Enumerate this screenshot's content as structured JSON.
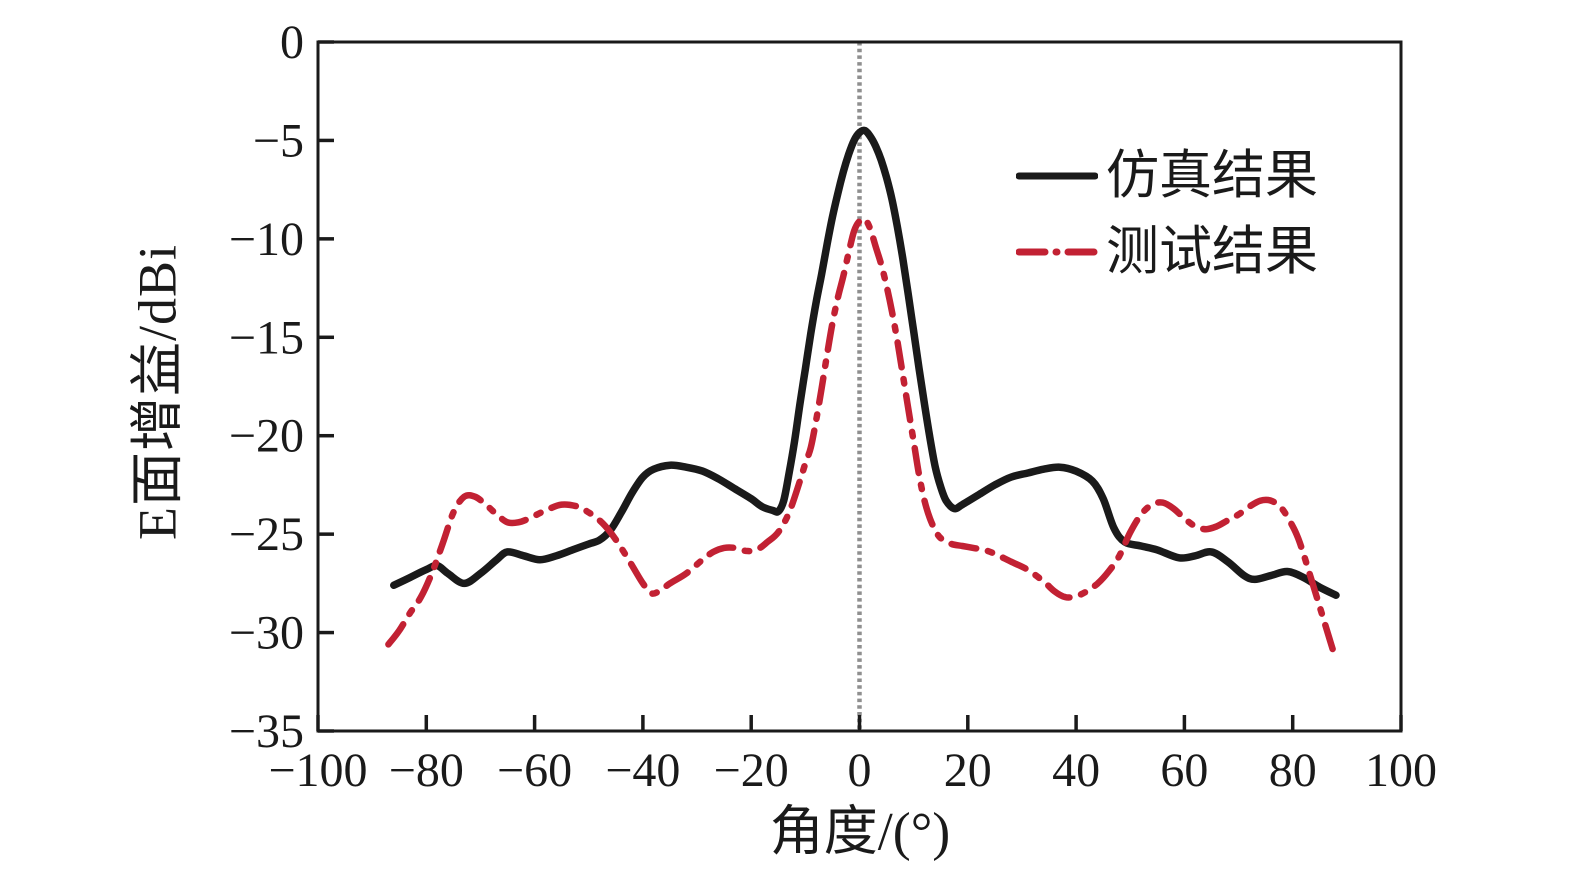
{
  "figure": {
    "background": "#ffffff",
    "axis_color": "#1a1a1a",
    "tick_label_color": "#1a1a1a"
  },
  "chart_data": {
    "type": "line",
    "title": "",
    "xlabel": "角度/(°)",
    "ylabel": "E面增益/dBi",
    "xlim": [
      -100,
      100
    ],
    "ylim": [
      -35,
      0
    ],
    "x_ticks": [
      -100,
      -80,
      -60,
      -40,
      -20,
      0,
      20,
      40,
      60,
      80,
      100
    ],
    "y_ticks": [
      0,
      -5,
      -10,
      -15,
      -20,
      -25,
      -30,
      -35
    ],
    "grid": false,
    "legend_position": "upper right",
    "reference_line": {
      "x": 0,
      "style": "dotted",
      "color": "#8f8f8f"
    },
    "series": [
      {
        "name": "仿真结果",
        "color": "#1a1a1a",
        "style": "solid",
        "points": [
          [
            -86,
            -27.6
          ],
          [
            -83,
            -27.2
          ],
          [
            -80,
            -26.8
          ],
          [
            -78,
            -26.6
          ],
          [
            -76,
            -27.0
          ],
          [
            -73,
            -27.5
          ],
          [
            -70,
            -27.0
          ],
          [
            -67,
            -26.3
          ],
          [
            -65,
            -25.9
          ],
          [
            -62,
            -26.1
          ],
          [
            -59,
            -26.3
          ],
          [
            -56,
            -26.1
          ],
          [
            -53,
            -25.8
          ],
          [
            -50,
            -25.5
          ],
          [
            -48,
            -25.3
          ],
          [
            -46,
            -24.8
          ],
          [
            -44,
            -23.9
          ],
          [
            -42,
            -22.9
          ],
          [
            -40,
            -22.1
          ],
          [
            -38,
            -21.7
          ],
          [
            -35,
            -21.5
          ],
          [
            -32,
            -21.6
          ],
          [
            -29,
            -21.8
          ],
          [
            -26,
            -22.2
          ],
          [
            -23,
            -22.7
          ],
          [
            -20,
            -23.2
          ],
          [
            -18,
            -23.6
          ],
          [
            -16,
            -23.8
          ],
          [
            -15,
            -23.85
          ],
          [
            -14,
            -23.3
          ],
          [
            -13,
            -21.9
          ],
          [
            -12,
            -20.3
          ],
          [
            -11,
            -18.4
          ],
          [
            -10,
            -16.6
          ],
          [
            -9,
            -14.8
          ],
          [
            -8,
            -13.2
          ],
          [
            -7,
            -11.8
          ],
          [
            -6,
            -10.3
          ],
          [
            -5,
            -8.9
          ],
          [
            -4,
            -7.7
          ],
          [
            -3,
            -6.6
          ],
          [
            -2,
            -5.7
          ],
          [
            -1,
            -5.0
          ],
          [
            0,
            -4.6
          ],
          [
            1,
            -4.5
          ],
          [
            2,
            -4.8
          ],
          [
            3,
            -5.3
          ],
          [
            4,
            -6.0
          ],
          [
            5,
            -6.9
          ],
          [
            6,
            -8.0
          ],
          [
            7,
            -9.4
          ],
          [
            8,
            -11.0
          ],
          [
            9,
            -12.8
          ],
          [
            10,
            -14.7
          ],
          [
            11,
            -16.6
          ],
          [
            12,
            -18.4
          ],
          [
            13,
            -20.1
          ],
          [
            14,
            -21.6
          ],
          [
            15,
            -22.6
          ],
          [
            16,
            -23.3
          ],
          [
            17.5,
            -23.7
          ],
          [
            19,
            -23.5
          ],
          [
            22,
            -23.0
          ],
          [
            25,
            -22.5
          ],
          [
            28,
            -22.1
          ],
          [
            31,
            -21.9
          ],
          [
            34,
            -21.7
          ],
          [
            37,
            -21.6
          ],
          [
            40,
            -21.8
          ],
          [
            43,
            -22.3
          ],
          [
            45,
            -23.2
          ],
          [
            47,
            -24.7
          ],
          [
            49,
            -25.4
          ],
          [
            52,
            -25.6
          ],
          [
            55,
            -25.8
          ],
          [
            59,
            -26.2
          ],
          [
            62,
            -26.1
          ],
          [
            65,
            -25.9
          ],
          [
            68,
            -26.4
          ],
          [
            71,
            -27.1
          ],
          [
            73,
            -27.3
          ],
          [
            76,
            -27.1
          ],
          [
            79,
            -26.9
          ],
          [
            82,
            -27.2
          ],
          [
            85,
            -27.7
          ],
          [
            88,
            -28.1
          ]
        ]
      },
      {
        "name": "测试结果",
        "color": "#c22133",
        "style": "dash-dot",
        "points": [
          [
            -87,
            -30.6
          ],
          [
            -85,
            -29.9
          ],
          [
            -83,
            -29.0
          ],
          [
            -81,
            -28.2
          ],
          [
            -79,
            -27.0
          ],
          [
            -77,
            -25.5
          ],
          [
            -75,
            -23.9
          ],
          [
            -73,
            -23.1
          ],
          [
            -71,
            -23.1
          ],
          [
            -69,
            -23.5
          ],
          [
            -67,
            -24.0
          ],
          [
            -65,
            -24.4
          ],
          [
            -63,
            -24.4
          ],
          [
            -61,
            -24.2
          ],
          [
            -58,
            -23.8
          ],
          [
            -55,
            -23.5
          ],
          [
            -52,
            -23.6
          ],
          [
            -50,
            -23.9
          ],
          [
            -48,
            -24.3
          ],
          [
            -46,
            -24.9
          ],
          [
            -44,
            -25.7
          ],
          [
            -42,
            -26.6
          ],
          [
            -40,
            -27.5
          ],
          [
            -38.5,
            -28.0
          ],
          [
            -37,
            -27.9
          ],
          [
            -35,
            -27.5
          ],
          [
            -32,
            -27.0
          ],
          [
            -29,
            -26.3
          ],
          [
            -27,
            -25.9
          ],
          [
            -25,
            -25.7
          ],
          [
            -23,
            -25.7
          ],
          [
            -21,
            -25.85
          ],
          [
            -19,
            -25.8
          ],
          [
            -17,
            -25.4
          ],
          [
            -15,
            -24.9
          ],
          [
            -13,
            -23.9
          ],
          [
            -11,
            -22.3
          ],
          [
            -10,
            -21.4
          ],
          [
            -9,
            -20.6
          ],
          [
            -8,
            -19.2
          ],
          [
            -7,
            -17.6
          ],
          [
            -6,
            -15.9
          ],
          [
            -5,
            -14.3
          ],
          [
            -4,
            -13.0
          ],
          [
            -3,
            -11.9
          ],
          [
            -2,
            -10.7
          ],
          [
            -1,
            -9.6
          ],
          [
            0,
            -9.1
          ],
          [
            1,
            -9.0
          ],
          [
            2,
            -9.5
          ],
          [
            3,
            -10.4
          ],
          [
            4,
            -11.3
          ],
          [
            5,
            -12.4
          ],
          [
            6,
            -13.7
          ],
          [
            7,
            -15.2
          ],
          [
            8,
            -16.9
          ],
          [
            9,
            -18.6
          ],
          [
            10,
            -20.3
          ],
          [
            11,
            -22.0
          ],
          [
            12,
            -23.3
          ],
          [
            13,
            -24.2
          ],
          [
            14,
            -24.8
          ],
          [
            15,
            -25.2
          ],
          [
            17,
            -25.5
          ],
          [
            19,
            -25.6
          ],
          [
            21,
            -25.7
          ],
          [
            23,
            -25.8
          ],
          [
            25,
            -26.0
          ],
          [
            28,
            -26.4
          ],
          [
            31,
            -26.8
          ],
          [
            34,
            -27.4
          ],
          [
            36,
            -27.9
          ],
          [
            38,
            -28.2
          ],
          [
            40,
            -28.15
          ],
          [
            42,
            -27.9
          ],
          [
            44,
            -27.5
          ],
          [
            46,
            -26.9
          ],
          [
            48,
            -26.1
          ],
          [
            50,
            -24.9
          ],
          [
            52,
            -24.0
          ],
          [
            54,
            -23.5
          ],
          [
            56,
            -23.4
          ],
          [
            58,
            -23.7
          ],
          [
            60,
            -24.2
          ],
          [
            62,
            -24.6
          ],
          [
            64,
            -24.75
          ],
          [
            66,
            -24.6
          ],
          [
            68,
            -24.3
          ],
          [
            70,
            -24.0
          ],
          [
            72,
            -23.6
          ],
          [
            74,
            -23.3
          ],
          [
            76,
            -23.3
          ],
          [
            78,
            -23.7
          ],
          [
            80,
            -24.6
          ],
          [
            81,
            -25.2
          ],
          [
            82,
            -26.0
          ],
          [
            83,
            -26.9
          ],
          [
            84,
            -27.8
          ],
          [
            85,
            -28.7
          ],
          [
            86,
            -29.6
          ],
          [
            87,
            -30.5
          ],
          [
            88,
            -31.4
          ]
        ]
      }
    ]
  },
  "legend": {
    "items": [
      {
        "label": "仿真结果",
        "swatch": "solid-black-line"
      },
      {
        "label": "测试结果",
        "swatch": "dash-dot-red-line"
      }
    ]
  }
}
